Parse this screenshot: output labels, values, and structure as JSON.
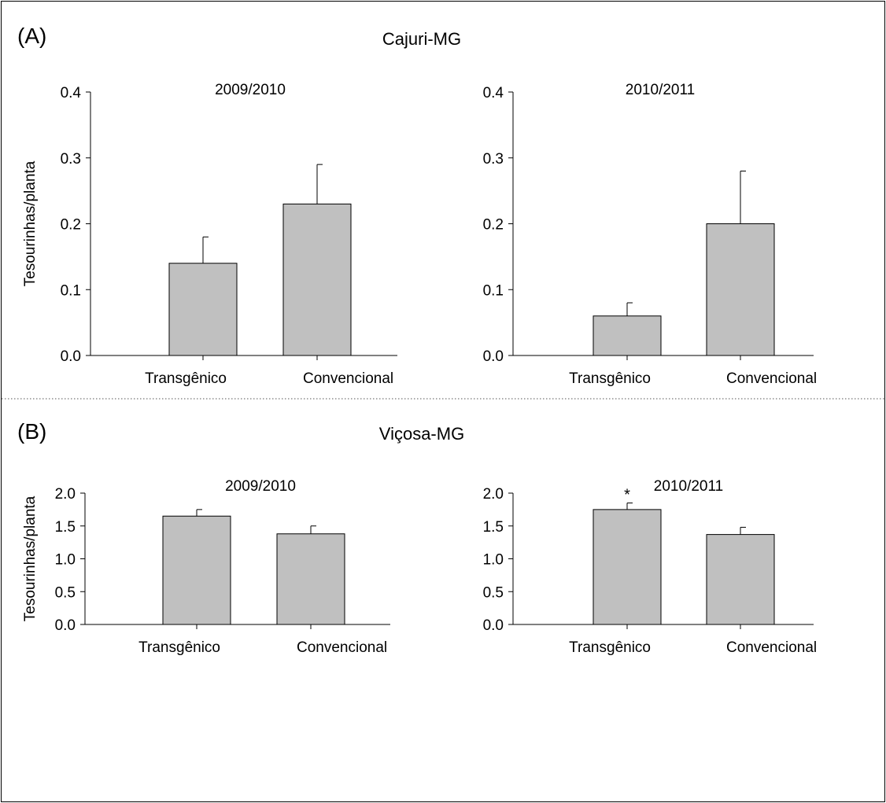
{
  "colors": {
    "bar_fill": "#c0c0c0",
    "bar_stroke": "#000000",
    "axis": "#000000",
    "frame": "#000000",
    "divider": "#555555"
  },
  "panels": [
    {
      "letter": "(A)",
      "location": "Cajuri-MG"
    },
    {
      "letter": "(B)",
      "location": "Viçosa-MG"
    }
  ],
  "chart_data": [
    {
      "type": "bar",
      "panel": "(A)",
      "title": "2009/2010",
      "ylabel": "Tesourinhas/planta",
      "categories": [
        "Transgênico",
        "Convencional"
      ],
      "values": [
        0.14,
        0.23
      ],
      "errors": [
        0.04,
        0.06
      ],
      "ylim": [
        0,
        0.4
      ],
      "yticks": [
        "0.0",
        "0.1",
        "0.2",
        "0.3",
        "0.4"
      ],
      "annotations": [
        "",
        ""
      ]
    },
    {
      "type": "bar",
      "panel": "(A)",
      "title": "2010/2011",
      "ylabel": "",
      "categories": [
        "Transgênico",
        "Convencional"
      ],
      "values": [
        0.06,
        0.2
      ],
      "errors": [
        0.02,
        0.08
      ],
      "ylim": [
        0,
        0.4
      ],
      "yticks": [
        "0.0",
        "0.1",
        "0.2",
        "0.3",
        "0.4"
      ],
      "annotations": [
        "",
        ""
      ]
    },
    {
      "type": "bar",
      "panel": "(B)",
      "title": "2009/2010",
      "ylabel": "Tesourinhas/planta",
      "categories": [
        "Transgênico",
        "Convencional"
      ],
      "values": [
        1.65,
        1.38
      ],
      "errors": [
        0.1,
        0.12
      ],
      "ylim": [
        0,
        2.0
      ],
      "yticks": [
        "0.0",
        "0.5",
        "1.0",
        "1.5",
        "2.0"
      ],
      "annotations": [
        "",
        ""
      ]
    },
    {
      "type": "bar",
      "panel": "(B)",
      "title": "2010/2011",
      "ylabel": "",
      "categories": [
        "Transgênico",
        "Convencional"
      ],
      "values": [
        1.75,
        1.37
      ],
      "errors": [
        0.1,
        0.11
      ],
      "ylim": [
        0,
        2.0
      ],
      "yticks": [
        "0.0",
        "0.5",
        "1.0",
        "1.5",
        "2.0"
      ],
      "annotations": [
        "*",
        ""
      ]
    }
  ]
}
